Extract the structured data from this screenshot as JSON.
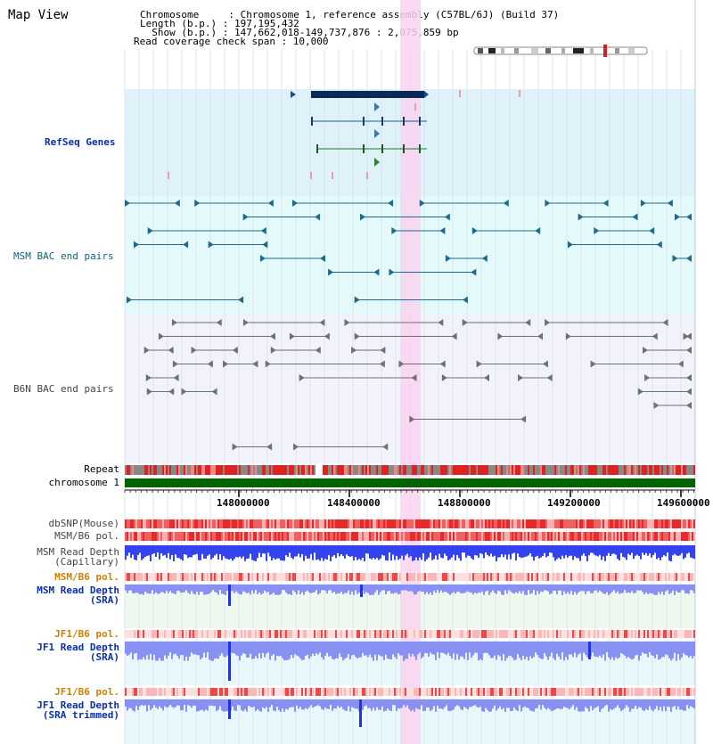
{
  "title": "Map View",
  "info": {
    "chromosome": "Chromosome     : Chromosome 1, reference assembly (C57BL/6J) (Build 37)",
    "length": "Length (b.p.) : 197,195,432",
    "show": "  Show (b.p.) : 147,662,018-149,737,876 : 2,075,859 bp",
    "coverage": "Read coverage check span : 10,000"
  },
  "tracks": {
    "refseq": "RefSeq Genes",
    "msm_bac": "MSM BAC end pairs",
    "b6n_bac": "B6N BAC end pairs",
    "repeat": "Repeat",
    "chromosome": "chromosome 1",
    "dbsnp": "dbSNP(Mouse)",
    "msm_pol1": "MSM/B6 pol.",
    "msm_depth_cap": "MSM Read Depth\n(Capillary)",
    "msm_pol2": "MSM/B6 pol.",
    "msm_depth_sra": "MSM Read Depth\n(SRA)",
    "jf1_pol1": "JF1/B6 pol.",
    "jf1_depth_sra": "JF1 Read Depth\n(SRA)",
    "jf1_pol2": "JF1/B6 pol.",
    "jf1_depth_trim": "JF1 Read Depth\n(SRA trimmed)"
  },
  "axis": {
    "ticks": [
      "148000000",
      "148400000",
      "148800000",
      "149200000",
      "149600000"
    ]
  },
  "colors": {
    "refseq_bg": "#dff2fa",
    "msm_bg": "#e4fafa",
    "b6n_bg": "#f2f2fa",
    "highlight": "#f9d4f0",
    "chromosome_bar": "#006400",
    "depth_blue": "#3344ee",
    "depth_sra": "#8890f2"
  }
}
